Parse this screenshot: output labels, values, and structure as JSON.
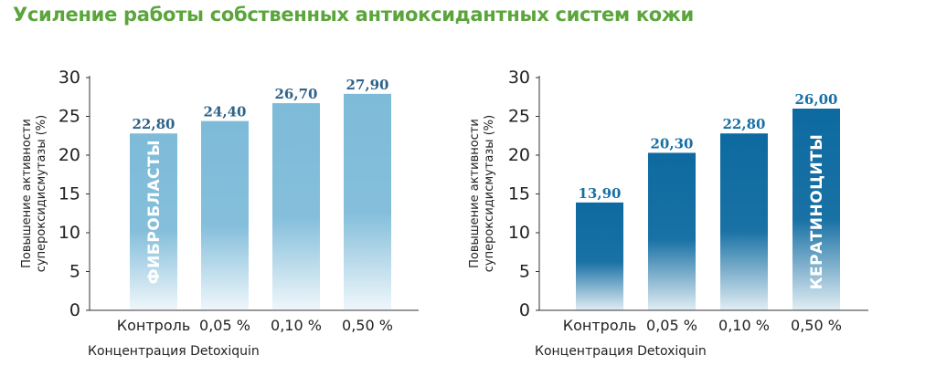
{
  "title": "Усиление работы собственных антиоксидантных систем кожи",
  "chart_data": [
    {
      "type": "bar",
      "categories": [
        "Контроль",
        "0,05 %",
        "0,10 %",
        "0,50 %"
      ],
      "values": [
        22.8,
        24.4,
        26.7,
        27.9
      ],
      "value_labels": [
        "22,80",
        "24,40",
        "26,70",
        "27,90"
      ],
      "ylabel_lines": [
        "Повышение активности",
        "супероксидисмутазы (%)"
      ],
      "xlabel": "Концентрация Detoxiquin",
      "ylim": [
        0,
        30
      ],
      "yticks": [
        0,
        5,
        10,
        15,
        20,
        25,
        30
      ],
      "overlay_text": "ФИБРОБЛАСТЫ",
      "bar_color": "#7ebbd9",
      "label_color": "#2f6388",
      "grid": false
    },
    {
      "type": "bar",
      "categories": [
        "Контроль",
        "0,05 %",
        "0,10 %",
        "0,50 %"
      ],
      "values": [
        13.9,
        20.3,
        22.8,
        26.0
      ],
      "value_labels": [
        "13,90",
        "20,30",
        "22,80",
        "26,00"
      ],
      "ylabel_lines": [
        "Повышение активности",
        "супероксидисмутазы (%)"
      ],
      "xlabel": "Концентрация Detoxiquin",
      "ylim": [
        0,
        30
      ],
      "yticks": [
        0,
        5,
        10,
        15,
        20,
        25,
        30
      ],
      "overlay_text": "КЕРАТИНОЦИТЫ",
      "bar_color": "#0d6aa0",
      "label_color": "#1670a6",
      "grid": false
    }
  ]
}
